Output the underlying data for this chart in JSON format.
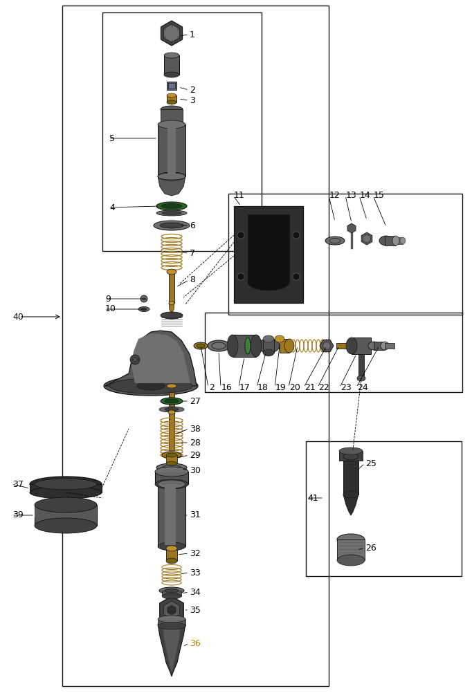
{
  "bg": "#ffffff",
  "g1": "#2e2e2e",
  "g2": "#404040",
  "g3": "#585858",
  "g4": "#707070",
  "g5": "#909090",
  "g6": "#aaaaaa",
  "brass": "#a07820",
  "brass2": "#c09030",
  "olive": "#706010",
  "dkgreen": "#2a6b2a",
  "green2": "#3d8b3d",
  "black": "#111111",
  "white": "#ffffff",
  "label_gold": "#b08000"
}
